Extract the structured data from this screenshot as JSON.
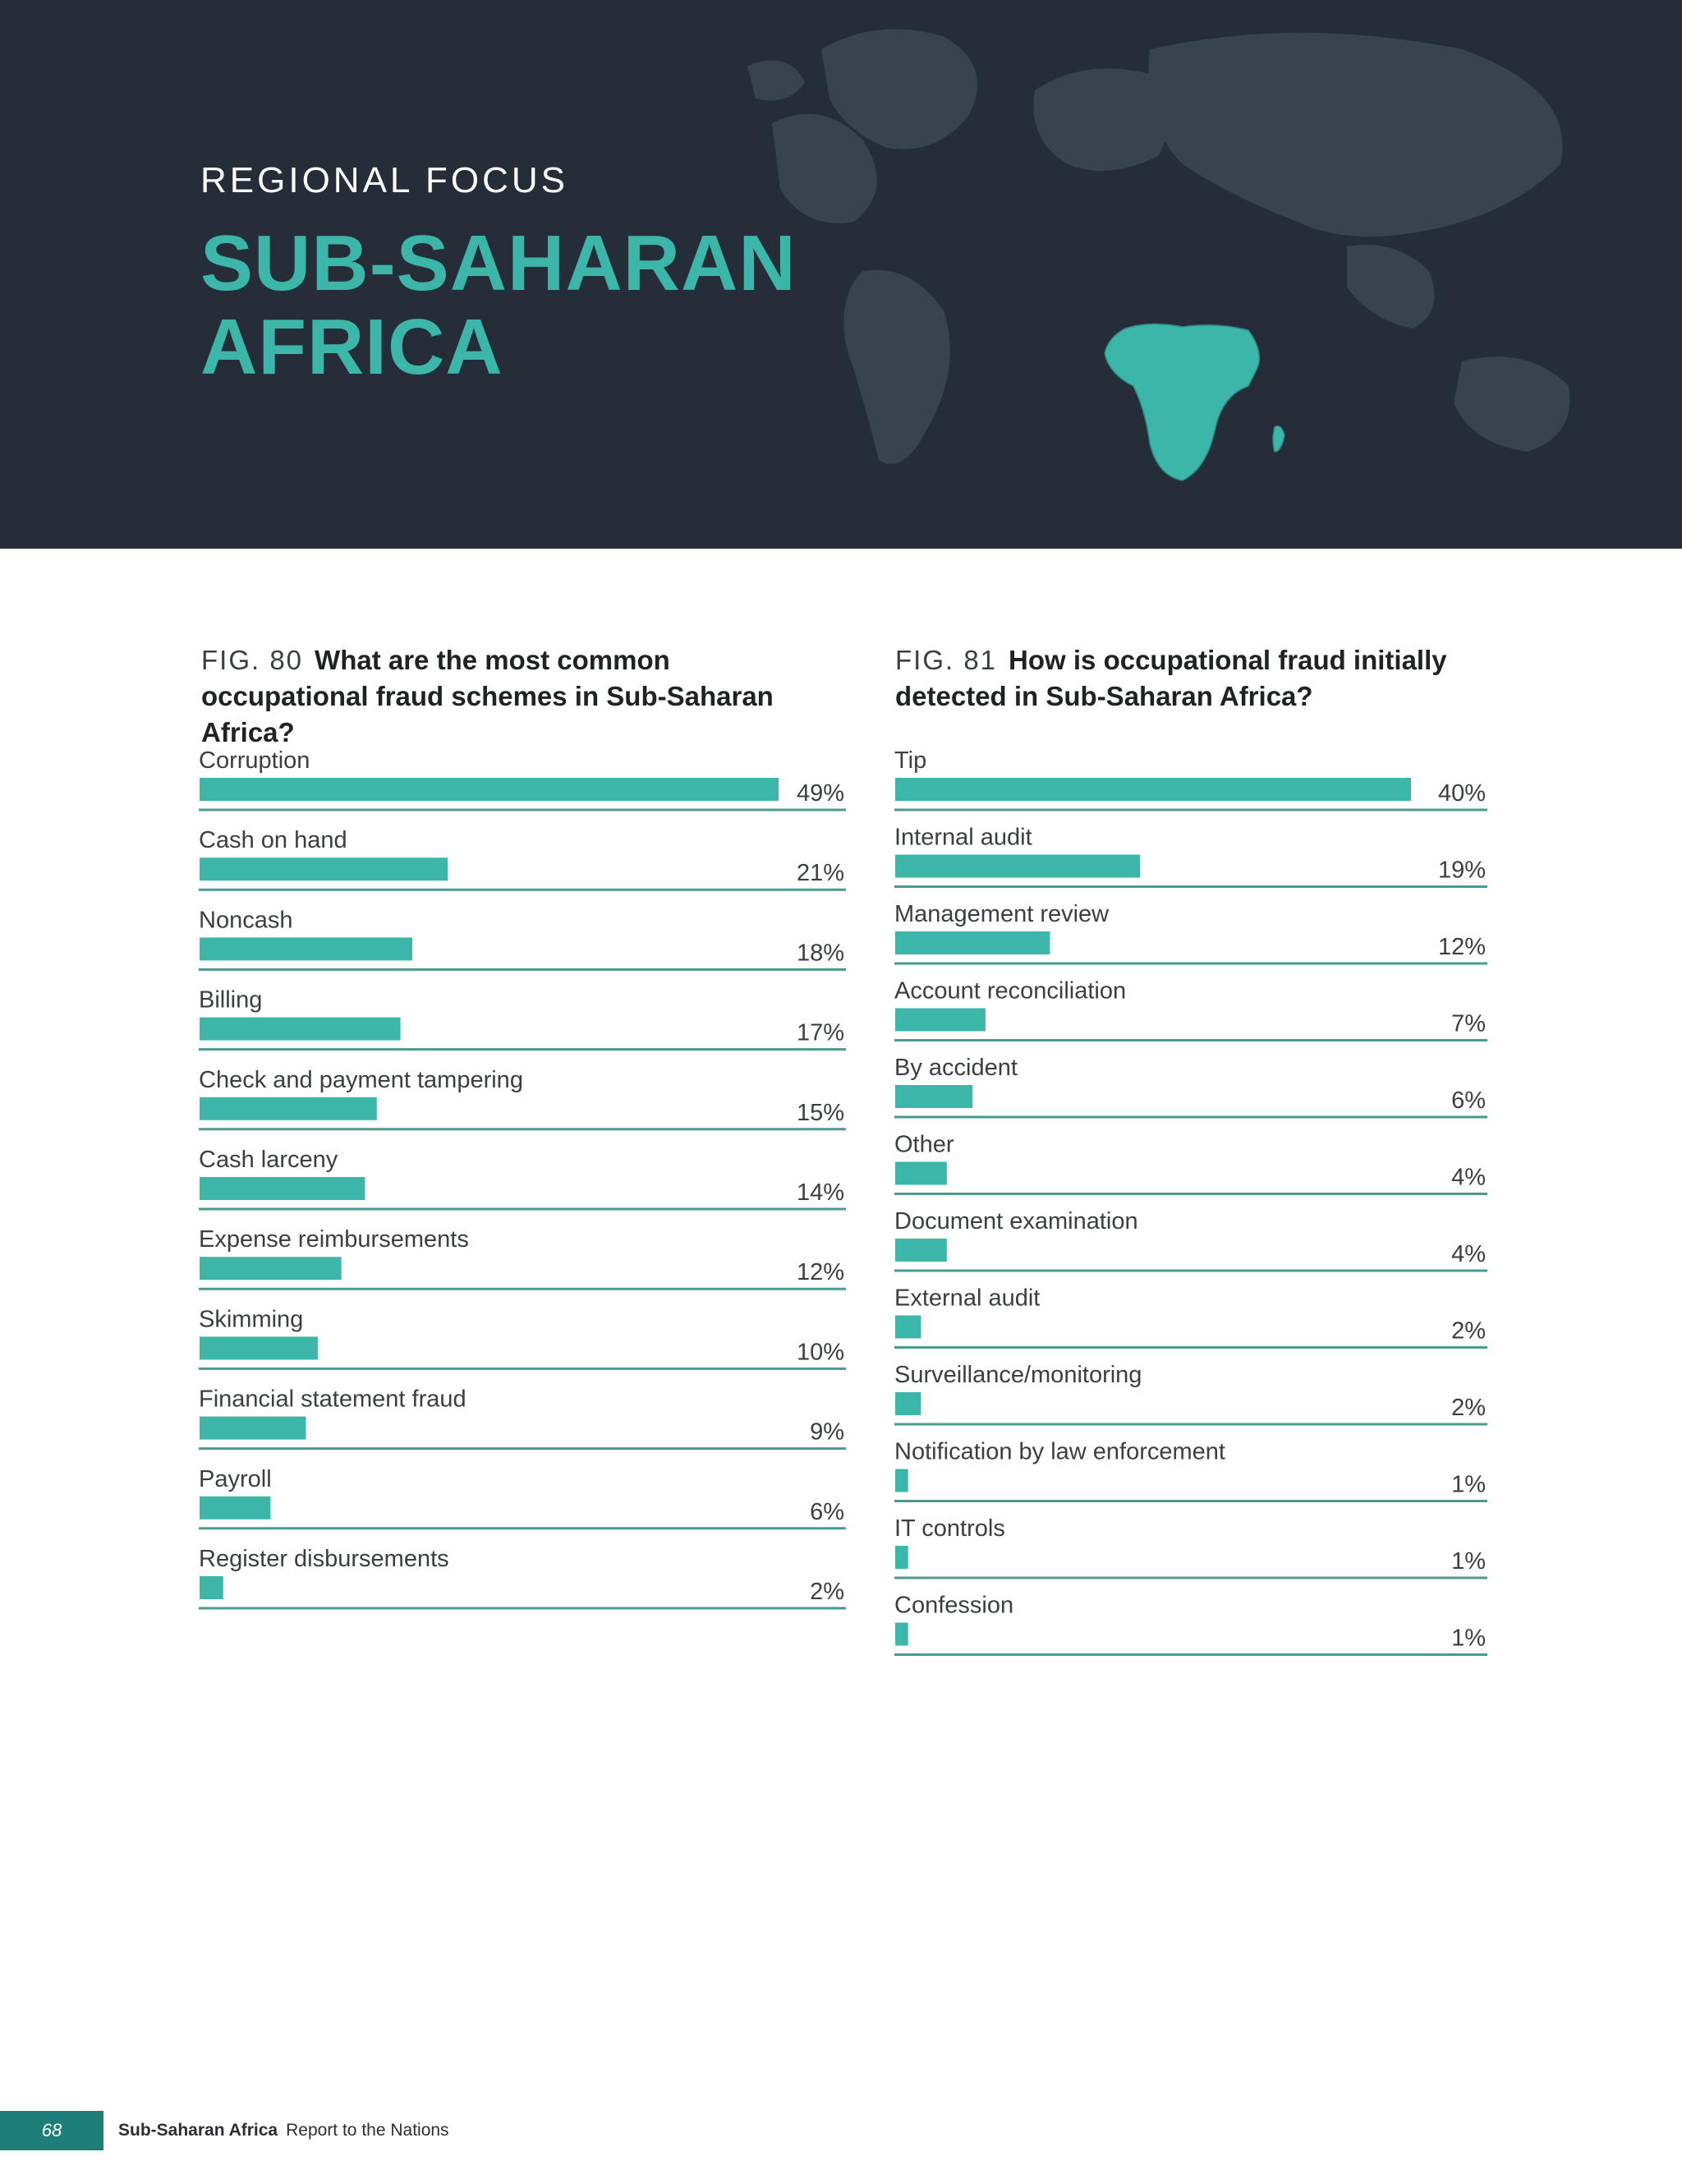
{
  "banner": {
    "kicker": "REGIONAL FOCUS",
    "title_line1": "SUB-SAHARAN",
    "title_line2": "AFRICA",
    "background_color": "#252e38",
    "accent_color": "#3bb6a9",
    "map_icon": "world-map-icon"
  },
  "chart_data": [
    {
      "type": "bar",
      "orientation": "horizontal",
      "figure_label": "FIG. 80",
      "title": "What are the most common occupational fraud schemes in Sub-Saharan Africa?",
      "categories": [
        "Corruption",
        "Cash on hand",
        "Noncash",
        "Billing",
        "Check and payment tampering",
        "Cash larceny",
        "Expense reimbursements",
        "Skimming",
        "Financial statement fraud",
        "Payroll",
        "Register disbursements"
      ],
      "values": [
        49,
        21,
        18,
        17,
        15,
        14,
        12,
        10,
        9,
        6,
        2
      ],
      "value_labels": [
        "49%",
        "21%",
        "18%",
        "17%",
        "15%",
        "14%",
        "12%",
        "10%",
        "9%",
        "6%",
        "2%"
      ],
      "xlim": [
        0,
        49
      ],
      "grid": false,
      "legend": "none",
      "bar_color": "#3bb6a9"
    },
    {
      "type": "bar",
      "orientation": "horizontal",
      "figure_label": "FIG. 81",
      "title": "How is occupational fraud initially detected in Sub-Saharan Africa?",
      "categories": [
        "Tip",
        "Internal audit",
        "Management review",
        "Account reconciliation",
        "By accident",
        "Other",
        "Document examination",
        "External audit",
        "Surveillance/monitoring",
        "Notification by law enforcement",
        "IT controls",
        "Confession"
      ],
      "values": [
        40,
        19,
        12,
        7,
        6,
        4,
        4,
        2,
        2,
        1,
        1,
        1
      ],
      "value_labels": [
        "40%",
        "19%",
        "12%",
        "7%",
        "6%",
        "4%",
        "4%",
        "2%",
        "2%",
        "1%",
        "1%",
        "1%"
      ],
      "xlim": [
        0,
        40
      ],
      "grid": false,
      "legend": "none",
      "bar_color": "#3bb6a9"
    }
  ],
  "footer": {
    "page_number": "68",
    "section": "Sub-Saharan Africa",
    "publication": "Report to the Nations",
    "tab_color": "#1e7f78"
  }
}
